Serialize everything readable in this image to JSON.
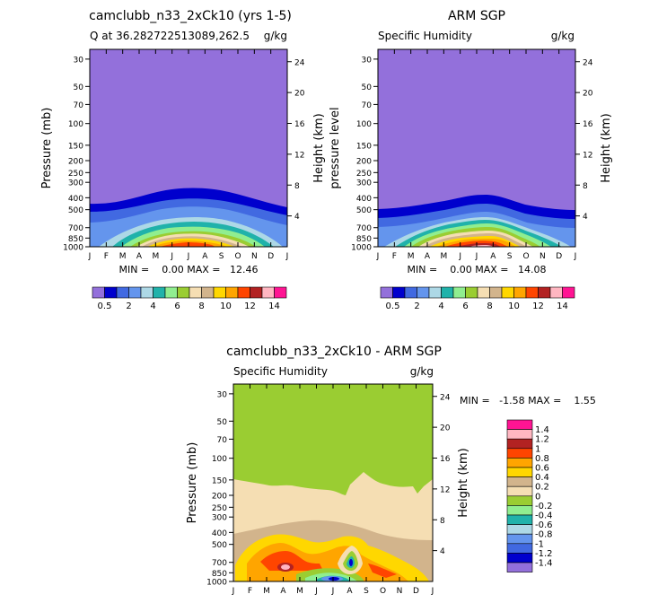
{
  "chart_data": [
    {
      "type": "heatmap",
      "title": "camclubb_n33_2xCk10 (yrs 1-5)",
      "subtitle_left": "Q at 36.282722513089,262.5",
      "subtitle_right": "g/kg",
      "ylabel_left": "Pressure (mb)",
      "ylabel_right": "Height (km)",
      "x_ticks": [
        "J",
        "F",
        "M",
        "A",
        "M",
        "J",
        "J",
        "A",
        "S",
        "O",
        "N",
        "D",
        "J"
      ],
      "y_ticks_pressure": [
        30,
        50,
        70,
        100,
        150,
        200,
        250,
        300,
        400,
        500,
        700,
        850,
        1000
      ],
      "y_ticks_height": [
        24,
        20,
        16,
        12,
        8,
        4
      ],
      "stats": "MIN =    0.00 MAX =   12.46",
      "min": 0.0,
      "max": 12.46,
      "colorbar_labels": [
        "0.5",
        "2",
        "4",
        "6",
        "8",
        "10",
        "12",
        "14"
      ]
    },
    {
      "type": "heatmap",
      "title": "ARM SGP",
      "subtitle_left": "Specific Humidity",
      "subtitle_right": "g/kg",
      "ylabel_left": "pressure level",
      "ylabel_right": "Height (km)",
      "x_ticks": [
        "J",
        "F",
        "M",
        "A",
        "M",
        "J",
        "J",
        "A",
        "S",
        "O",
        "N",
        "D",
        "J"
      ],
      "y_ticks_pressure": [
        30,
        50,
        70,
        100,
        150,
        200,
        250,
        300,
        400,
        500,
        700,
        850,
        1000
      ],
      "y_ticks_height": [
        24,
        20,
        16,
        12,
        8,
        4
      ],
      "stats": "MIN =    0.00 MAX =   14.08",
      "min": 0.0,
      "max": 14.08,
      "colorbar_labels": [
        "0.5",
        "2",
        "4",
        "6",
        "8",
        "10",
        "12",
        "14"
      ]
    },
    {
      "type": "heatmap",
      "title": "camclubb_n33_2xCk10 - ARM SGP",
      "subtitle_left": "Specific Humidity",
      "subtitle_right": "g/kg",
      "ylabel_left": "Pressure (mb)",
      "ylabel_right": "Height (km)",
      "x_ticks": [
        "J",
        "F",
        "M",
        "A",
        "M",
        "J",
        "J",
        "A",
        "S",
        "O",
        "N",
        "D",
        "J"
      ],
      "y_ticks_pressure": [
        30,
        50,
        70,
        100,
        150,
        200,
        250,
        300,
        400,
        500,
        700,
        850,
        1000
      ],
      "y_ticks_height": [
        24,
        20,
        16,
        12,
        8,
        4
      ],
      "stats": "MIN =   -1.58 MAX =    1.55",
      "min": -1.58,
      "max": 1.55,
      "colorbar_labels": [
        "1.4",
        "1.2",
        "1",
        "0.8",
        "0.6",
        "0.4",
        "0.2",
        "0",
        "-0.2",
        "-0.4",
        "-0.6",
        "-0.8",
        "-1",
        "-1.2",
        "-1.4"
      ]
    }
  ],
  "colors": {
    "abs_scale": [
      "#9370db",
      "#0000cd",
      "#4169e1",
      "#6495ed",
      "#add8e6",
      "#20b2aa",
      "#90ee90",
      "#9acd32",
      "#f5deb3",
      "#d2b48c",
      "#ffd700",
      "#ffa500",
      "#ff4500",
      "#b22222",
      "#ffb6c1",
      "#ff1493"
    ],
    "diff_scale": [
      "#ff1493",
      "#ffb6c1",
      "#b22222",
      "#ff4500",
      "#ffa500",
      "#ffd700",
      "#d2b48c",
      "#f5deb3",
      "#9acd32",
      "#90ee90",
      "#20b2aa",
      "#add8e6",
      "#6495ed",
      "#4169e1",
      "#0000cd",
      "#9370db"
    ]
  }
}
